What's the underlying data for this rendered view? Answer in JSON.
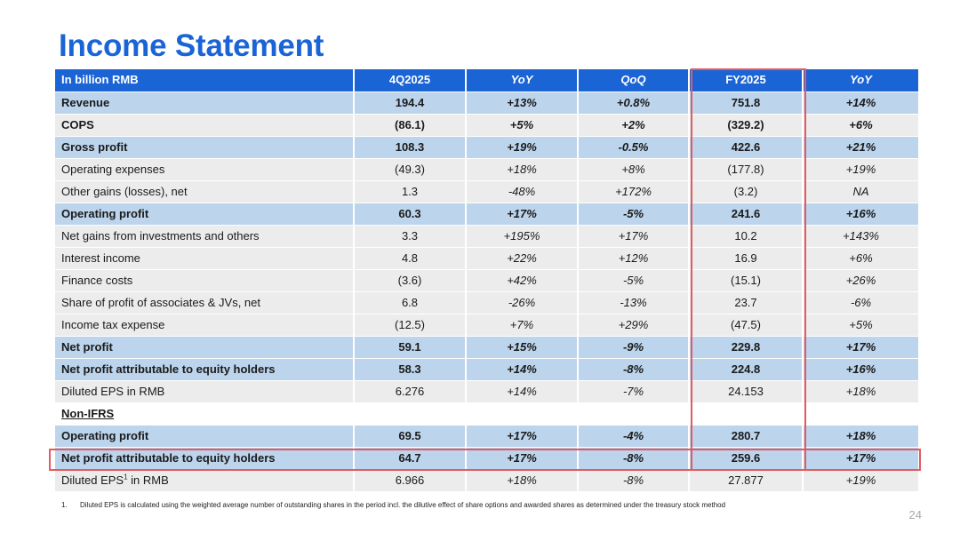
{
  "title": "Income Statement",
  "table": {
    "headers": [
      {
        "label": "In billion RMB",
        "italic": false
      },
      {
        "label": "4Q2025",
        "italic": false
      },
      {
        "label": "YoY",
        "italic": true
      },
      {
        "label": "QoQ",
        "italic": true
      },
      {
        "label": "FY2025",
        "italic": false
      },
      {
        "label": "YoY",
        "italic": true
      }
    ],
    "rows": [
      {
        "kind": "hl",
        "cells": [
          "Revenue",
          "194.4",
          "+13%",
          "+0.8%",
          "751.8",
          "+14%"
        ]
      },
      {
        "kind": "nm",
        "cells": [
          "COPS",
          "(86.1)",
          "+5%",
          "+2%",
          "(329.2)",
          "+6%"
        ],
        "bold": true
      },
      {
        "kind": "hl",
        "cells": [
          "Gross profit",
          "108.3",
          "+19%",
          "-0.5%",
          "422.6",
          "+21%"
        ]
      },
      {
        "kind": "nm",
        "cells": [
          "Operating expenses",
          "(49.3)",
          "+18%",
          "+8%",
          "(177.8)",
          "+19%"
        ]
      },
      {
        "kind": "nm",
        "cells": [
          "Other gains (losses), net",
          "1.3",
          "-48%",
          "+172%",
          "(3.2)",
          "NA"
        ]
      },
      {
        "kind": "hl",
        "cells": [
          "Operating profit",
          "60.3",
          "+17%",
          "-5%",
          "241.6",
          "+16%"
        ]
      },
      {
        "kind": "nm",
        "cells": [
          "Net gains from investments and others",
          "3.3",
          "+195%",
          "+17%",
          "10.2",
          "+143%"
        ]
      },
      {
        "kind": "nm",
        "cells": [
          "Interest income",
          "4.8",
          "+22%",
          "+12%",
          "16.9",
          "+6%"
        ]
      },
      {
        "kind": "nm",
        "cells": [
          "Finance costs",
          "(3.6)",
          "+42%",
          "-5%",
          "(15.1)",
          "+26%"
        ]
      },
      {
        "kind": "nm",
        "cells": [
          "Share of profit of associates & JVs, net",
          "6.8",
          "-26%",
          "-13%",
          "23.7",
          "-6%"
        ]
      },
      {
        "kind": "nm",
        "cells": [
          "Income tax expense",
          "(12.5)",
          "+7%",
          "+29%",
          "(47.5)",
          "+5%"
        ]
      },
      {
        "kind": "hl",
        "cells": [
          "Net profit",
          "59.1",
          "+15%",
          "-9%",
          "229.8",
          "+17%"
        ]
      },
      {
        "kind": "hl",
        "cells": [
          "Net profit attributable to equity holders",
          "58.3",
          "+14%",
          "-8%",
          "224.8",
          "+16%"
        ]
      },
      {
        "kind": "nm",
        "cells": [
          "Diluted EPS in RMB",
          "6.276",
          "+14%",
          "-7%",
          "24.153",
          "+18%"
        ]
      },
      {
        "kind": "sec",
        "cells": [
          "Non-IFRS",
          "",
          "",
          "",
          "",
          ""
        ]
      },
      {
        "kind": "hl",
        "cells": [
          "Operating profit",
          "69.5",
          "+17%",
          "-4%",
          "280.7",
          "+18%"
        ]
      },
      {
        "kind": "hl",
        "cells": [
          "Net profit attributable to equity holders",
          "64.7",
          "+17%",
          "-8%",
          "259.6",
          "+17%"
        ]
      },
      {
        "kind": "nm",
        "cells": [
          "Diluted EPS",
          "6.966",
          "+18%",
          "-8%",
          "27.877",
          "+19%"
        ],
        "label_sup": "1",
        "label_suffix": " in RMB"
      }
    ]
  },
  "footnote": {
    "number": "1.",
    "text": "Diluted EPS is calculated using the weighted average number of outstanding shares in the period incl. the dilutive effect of share options and awarded shares as determined under the treasury stock method"
  },
  "page_number": "24",
  "colors": {
    "title": "#1a64d6",
    "header_bg": "#1a64d6",
    "highlight_row_bg": "#bcd4ec",
    "normal_row_bg": "#ececec",
    "callout_border": "#e35a5f"
  }
}
